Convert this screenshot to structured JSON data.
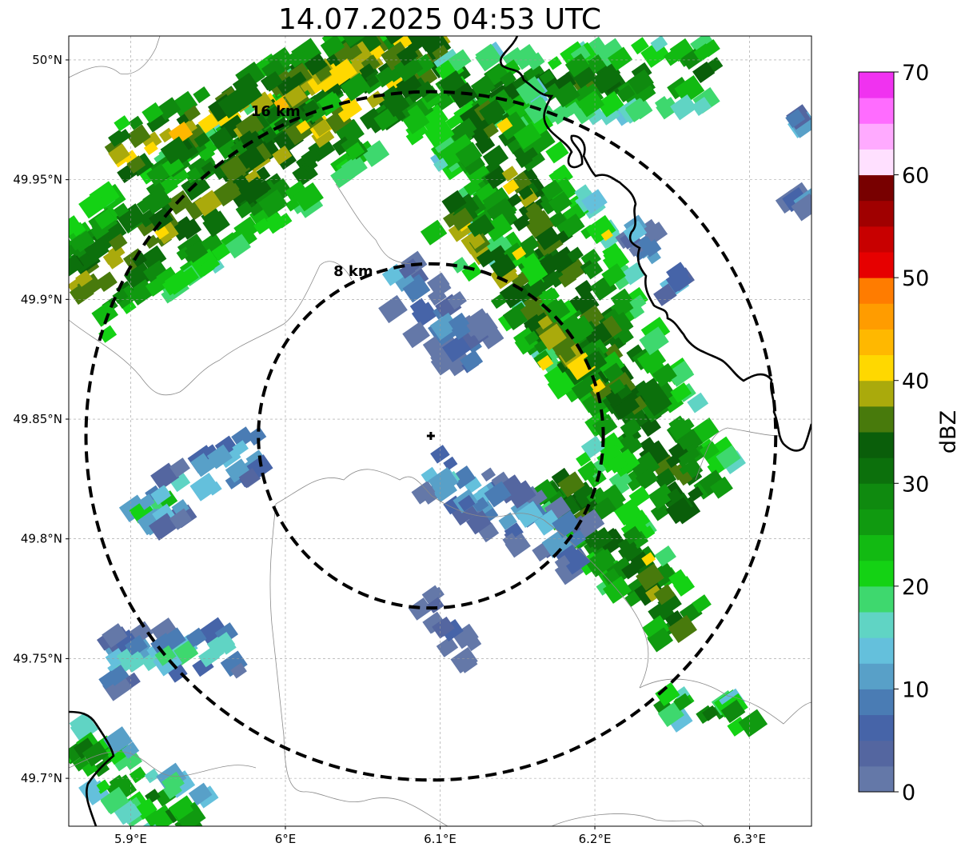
{
  "title": "14.07.2025 04:53 UTC",
  "map": {
    "lon_range": [
      5.86,
      6.34
    ],
    "lat_range": [
      49.68,
      50.01
    ],
    "lon_ticks": [
      {
        "value": 5.9,
        "label": "5.9°E"
      },
      {
        "value": 6.0,
        "label": "6°E"
      },
      {
        "value": 6.1,
        "label": "6.1°E"
      },
      {
        "value": 6.2,
        "label": "6.2°E"
      },
      {
        "value": 6.3,
        "label": "6.3°E"
      }
    ],
    "lat_ticks": [
      {
        "value": 50.0,
        "label": "50°N"
      },
      {
        "value": 49.95,
        "label": "49.95°N"
      },
      {
        "value": 49.9,
        "label": "49.9°N"
      },
      {
        "value": 49.85,
        "label": "49.85°N"
      },
      {
        "value": 49.8,
        "label": "49.8°N"
      },
      {
        "value": 49.75,
        "label": "49.75°N"
      },
      {
        "value": 49.7,
        "label": "49.7°N"
      }
    ],
    "radar_site": {
      "lon": 6.094,
      "lat": 49.843
    },
    "range_rings": [
      {
        "range_km": 8,
        "label": "8 km"
      },
      {
        "range_km": 16,
        "label": "16 km"
      }
    ]
  },
  "colorbar": {
    "label": "dBZ",
    "ticks": [
      "0",
      "10",
      "20",
      "30",
      "40",
      "50",
      "60",
      "70"
    ],
    "colors": [
      "#6478a8",
      "#5466a0",
      "#4664a8",
      "#4a7cb4",
      "#58a0c8",
      "#64c0dc",
      "#60d4c4",
      "#3ed86e",
      "#14d214",
      "#12ba12",
      "#109a10",
      "#0f8a0f",
      "#0c700c",
      "#0a5e0a",
      "#487a0c",
      "#aaaa0c",
      "#ffd800",
      "#ffb800",
      "#ff9c00",
      "#ff7c00",
      "#e60000",
      "#c80000",
      "#a00000",
      "#780000",
      "#ffe0ff",
      "#ffaaff",
      "#ff6cff",
      "#f032f0"
    ]
  }
}
